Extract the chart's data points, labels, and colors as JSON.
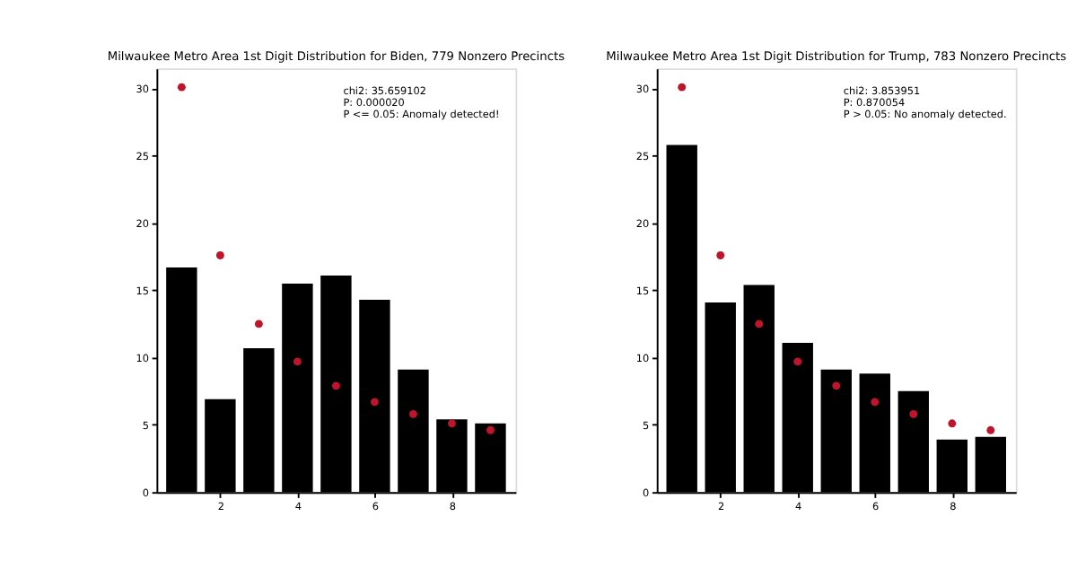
{
  "chart_data": [
    {
      "type": "bar",
      "title": "Milwaukee Metro Area 1st Digit Distribution for Biden, 779 Nonzero Precincts",
      "x": [
        1,
        2,
        3,
        4,
        5,
        6,
        7,
        8,
        9
      ],
      "series": [
        {
          "color": "#000000",
          "values": [
            16.7,
            6.9,
            10.7,
            15.5,
            16.1,
            14.3,
            9.1,
            5.4,
            5.1
          ]
        },
        {
          "type": "scatter",
          "color": "#c0142c",
          "marker": "circle",
          "values": [
            30.1,
            17.6,
            12.5,
            9.7,
            7.9,
            6.7,
            5.8,
            5.1,
            4.6
          ]
        }
      ],
      "annotations": [
        "chi2: 35.659102",
        "P: 0.000020",
        "P <= 0.05: Anomaly detected!"
      ],
      "xlim": [
        0.35,
        9.65
      ],
      "xticks": [
        2,
        4,
        6,
        8
      ],
      "ylim": [
        0,
        31.5
      ],
      "yticks": [
        0,
        5,
        10,
        15,
        20,
        25,
        30
      ],
      "grid": false
    },
    {
      "type": "bar",
      "title": "Milwaukee Metro Area 1st Digit Distribution for Trump, 783 Nonzero Precincts",
      "x": [
        1,
        2,
        3,
        4,
        5,
        6,
        7,
        8,
        9
      ],
      "series": [
        {
          "color": "#000000",
          "values": [
            25.8,
            14.1,
            15.4,
            11.1,
            9.1,
            8.8,
            7.5,
            3.9,
            4.1
          ]
        },
        {
          "type": "scatter",
          "color": "#c0142c",
          "marker": "circle",
          "values": [
            30.1,
            17.6,
            12.5,
            9.7,
            7.9,
            6.7,
            5.8,
            5.1,
            4.6
          ]
        }
      ],
      "annotations": [
        "chi2: 3.853951",
        "P: 0.870054",
        "P > 0.05: No anomaly detected."
      ],
      "xlim": [
        0.35,
        9.65
      ],
      "xticks": [
        2,
        4,
        6,
        8
      ],
      "ylim": [
        0,
        31.5
      ],
      "yticks": [
        0,
        5,
        10,
        15,
        20,
        25,
        30
      ],
      "grid": false
    }
  ]
}
